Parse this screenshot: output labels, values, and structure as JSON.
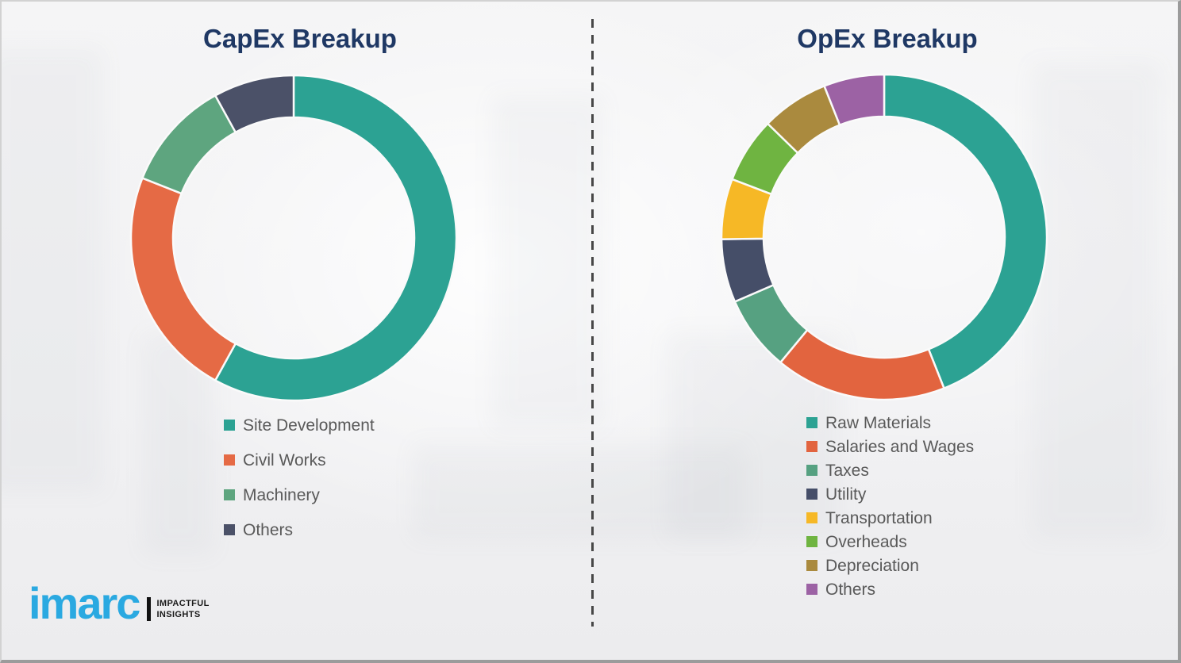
{
  "logo": {
    "brand": "imarc",
    "tagline_line1": "IMPACTFUL",
    "tagline_line2": "INSIGHTS",
    "brand_color": "#2AA9E1"
  },
  "titles": {
    "left": "CapEx Breakup",
    "right": "OpEx Breakup",
    "title_color": "#1F3864"
  },
  "chart_data": [
    {
      "type": "pie",
      "subtype": "donut",
      "title": "CapEx Breakup",
      "legend_position": "bottom-left",
      "start_angle_deg": 0,
      "direction": "clockwise",
      "categories": [
        "Site Development",
        "Civil Works",
        "Machinery",
        "Others"
      ],
      "values": [
        58,
        23,
        11,
        8
      ],
      "colors": [
        "#2CA293",
        "#E56A45",
        "#5EA57F",
        "#4B5168"
      ]
    },
    {
      "type": "pie",
      "subtype": "donut",
      "title": "OpEx Breakup",
      "legend_position": "bottom-left",
      "start_angle_deg": 0,
      "direction": "clockwise",
      "categories": [
        "Raw Materials",
        "Salaries and Wages",
        "Taxes",
        "Utility",
        "Transportation",
        "Overheads",
        "Depreciation",
        "Others"
      ],
      "values": [
        44,
        17,
        7.5,
        6.3,
        6,
        6.5,
        6.7,
        6
      ],
      "colors": [
        "#2CA293",
        "#E2643F",
        "#56A181",
        "#454E68",
        "#F6B826",
        "#6FB441",
        "#AA8A3E",
        "#9C62A4"
      ]
    }
  ]
}
